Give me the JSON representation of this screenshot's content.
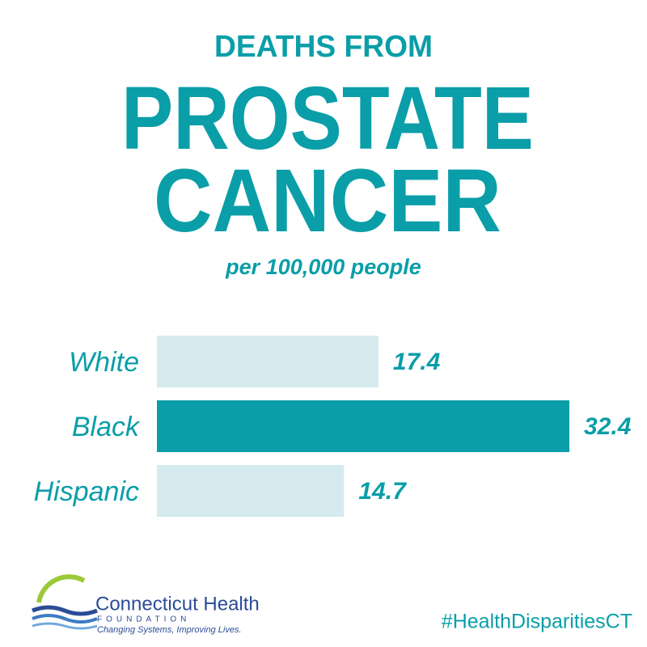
{
  "chart_data": {
    "type": "bar",
    "orientation": "horizontal",
    "title": [
      "DEATHS FROM",
      "PROSTATE",
      "CANCER"
    ],
    "subtitle": "per 100,000 people",
    "categories": [
      "White",
      "Black",
      "Hispanic"
    ],
    "values": [
      17.4,
      32.4,
      14.7
    ],
    "colors": [
      "#d5ebef",
      "#0a9ea8",
      "#d5ebef"
    ]
  },
  "footer": {
    "logo_name": "Connecticut Health",
    "logo_sub": "FOUNDATION",
    "tagline": "Changing Systems, Improving Lives.",
    "hashtag": "#HealthDisparitiesCT"
  }
}
